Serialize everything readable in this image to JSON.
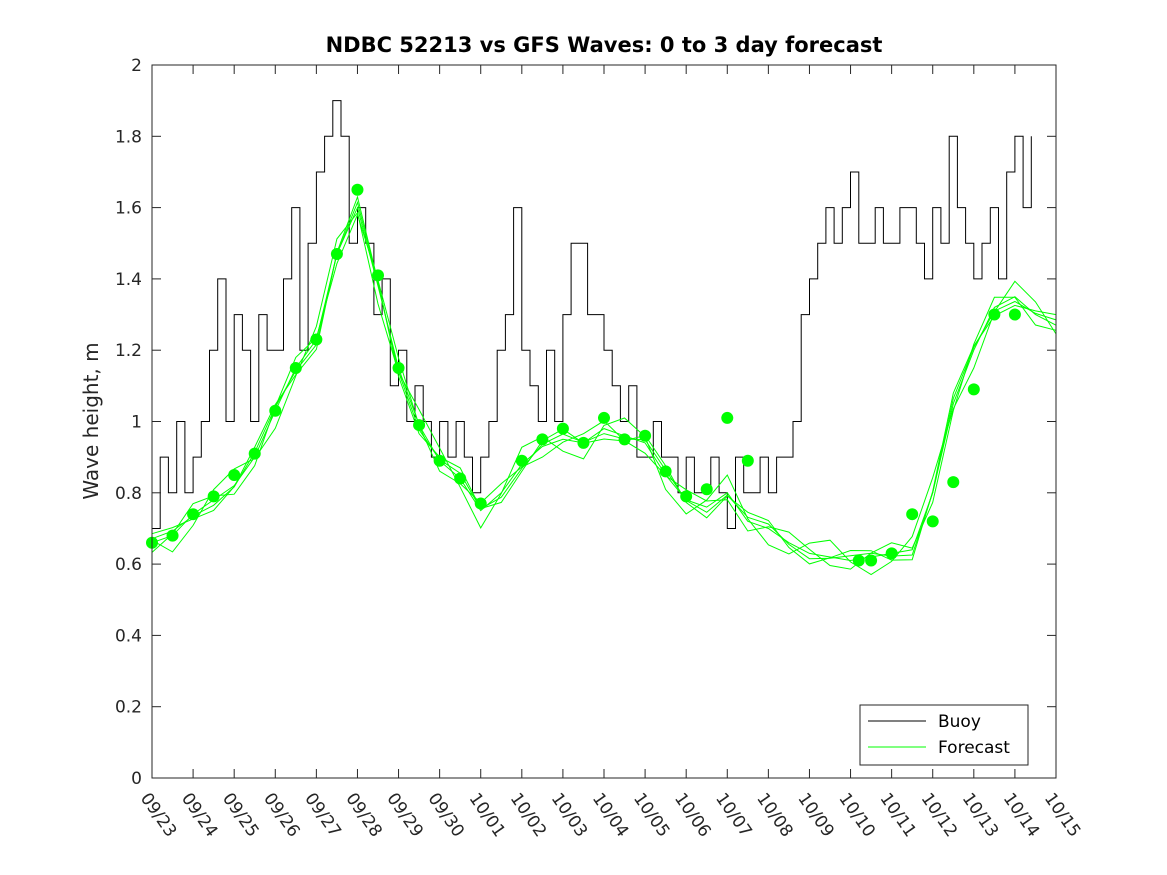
{
  "chart_data": {
    "type": "line",
    "title": "NDBC 52213 vs GFS Waves: 0 to 3 day forecast",
    "xlabel": "",
    "ylabel": "Wave height, m",
    "ylim": [
      0,
      2
    ],
    "xlim": [
      0,
      22
    ],
    "yticks": [
      0,
      0.2,
      0.4,
      0.6,
      0.8,
      1,
      1.2,
      1.4,
      1.6,
      1.8,
      2
    ],
    "ytick_labels": [
      "0",
      "0.2",
      "0.4",
      "0.6",
      "0.8",
      "1",
      "1.2",
      "1.4",
      "1.6",
      "1.8",
      "2"
    ],
    "xticks": [
      0,
      1,
      2,
      3,
      4,
      5,
      6,
      7,
      8,
      9,
      10,
      11,
      12,
      13,
      14,
      15,
      16,
      17,
      18,
      19,
      20,
      21,
      22
    ],
    "xtick_labels": [
      "09/23",
      "09/24",
      "09/25",
      "09/26",
      "09/27",
      "09/28",
      "09/29",
      "09/30",
      "10/01",
      "10/02",
      "10/03",
      "10/04",
      "10/05",
      "10/06",
      "10/07",
      "10/08",
      "10/09",
      "10/10",
      "10/11",
      "10/12",
      "10/13",
      "10/14",
      "10/15"
    ],
    "legend": {
      "placement": "bottom-right",
      "entries": [
        "Buoy",
        "Forecast"
      ]
    },
    "colors": {
      "buoy": "#000000",
      "forecast": "#00ff00",
      "axis": "#262626"
    },
    "series": [
      {
        "name": "Buoy",
        "x": [
          0,
          0.2,
          0.4,
          0.6,
          0.8,
          1.0,
          1.2,
          1.4,
          1.6,
          1.8,
          2.0,
          2.2,
          2.4,
          2.6,
          2.8,
          3.0,
          3.2,
          3.4,
          3.6,
          3.8,
          4.0,
          4.2,
          4.4,
          4.6,
          4.8,
          5.0,
          5.2,
          5.4,
          5.6,
          5.8,
          6.0,
          6.2,
          6.4,
          6.6,
          6.8,
          7.0,
          7.2,
          7.4,
          7.6,
          7.8,
          8.0,
          8.2,
          8.4,
          8.6,
          8.8,
          9.0,
          9.2,
          9.4,
          9.6,
          9.8,
          10.0,
          10.2,
          10.4,
          10.6,
          10.8,
          11.0,
          11.2,
          11.4,
          11.6,
          11.8,
          12.0,
          12.2,
          12.4,
          12.6,
          12.8,
          13.0,
          13.2,
          13.4,
          13.6,
          13.8,
          14.0,
          14.2,
          14.4,
          14.6,
          14.8,
          15.0,
          15.2,
          15.4,
          15.6,
          15.8,
          16.0,
          16.2,
          16.4,
          16.6,
          16.8,
          17.0,
          17.2,
          17.4,
          17.6,
          17.8,
          18.0,
          18.2,
          18.4,
          18.6,
          18.8,
          19.0,
          19.2,
          19.4,
          19.6,
          19.8,
          20.0,
          20.2,
          20.4,
          20.6,
          20.8,
          21.0,
          21.2,
          21.4
        ],
        "y": [
          0.7,
          0.9,
          0.8,
          1.0,
          0.8,
          0.9,
          1.0,
          1.2,
          1.4,
          1.0,
          1.3,
          1.2,
          1.0,
          1.3,
          1.2,
          1.2,
          1.4,
          1.6,
          1.2,
          1.5,
          1.7,
          1.8,
          1.9,
          1.8,
          1.5,
          1.6,
          1.5,
          1.3,
          1.4,
          1.1,
          1.2,
          1.0,
          1.1,
          1.0,
          0.9,
          1.0,
          0.9,
          1.0,
          0.9,
          0.8,
          0.9,
          1.0,
          1.2,
          1.3,
          1.6,
          1.2,
          1.1,
          1.0,
          1.2,
          1.0,
          1.3,
          1.5,
          1.5,
          1.3,
          1.3,
          1.2,
          1.1,
          1.0,
          1.1,
          0.9,
          0.9,
          1.0,
          0.9,
          0.9,
          0.8,
          0.9,
          0.8,
          0.8,
          0.9,
          0.8,
          0.7,
          0.9,
          0.8,
          0.8,
          0.9,
          0.8,
          0.9,
          0.9,
          1.0,
          1.3,
          1.4,
          1.5,
          1.6,
          1.5,
          1.6,
          1.7,
          1.5,
          1.5,
          1.6,
          1.5,
          1.5,
          1.6,
          1.6,
          1.5,
          1.4,
          1.6,
          1.5,
          1.8,
          1.6,
          1.5,
          1.4,
          1.5,
          1.6,
          1.4,
          1.7,
          1.8,
          1.6,
          1.8
        ]
      },
      {
        "name": "Forecast",
        "x": [
          0,
          0.5,
          1.0,
          1.5,
          2.0,
          2.5,
          3.0,
          3.5,
          4.0,
          4.5,
          5.0,
          5.5,
          6.0,
          6.5,
          7.0,
          7.5,
          8.0,
          8.5,
          9.0,
          9.5,
          10.0,
          10.5,
          11.0,
          11.5,
          12.0,
          12.5,
          13.0,
          13.5,
          14.0,
          14.5,
          15.0,
          15.5,
          16.0,
          16.5,
          17.0,
          17.5,
          18.0,
          18.5,
          19.0,
          19.5,
          20.0,
          20.5,
          21.0,
          21.5,
          22.0
        ],
        "y": [
          0.66,
          0.68,
          0.74,
          0.78,
          0.82,
          0.9,
          1.03,
          1.15,
          1.23,
          1.47,
          1.6,
          1.38,
          1.15,
          0.99,
          0.89,
          0.84,
          0.75,
          0.8,
          0.88,
          0.93,
          0.95,
          0.94,
          0.98,
          0.96,
          0.94,
          0.85,
          0.78,
          0.76,
          0.8,
          0.72,
          0.7,
          0.66,
          0.63,
          0.62,
          0.61,
          0.62,
          0.63,
          0.64,
          0.8,
          1.05,
          1.2,
          1.32,
          1.35,
          1.3,
          1.27
        ]
      }
    ],
    "forecast_ensemble_offsets": [
      0,
      0.03,
      -0.03,
      0.05,
      -0.015
    ],
    "forecast_markers": {
      "x": [
        0,
        0.5,
        1,
        1.5,
        2,
        2.5,
        3,
        3.5,
        4,
        4.5,
        5,
        5.5,
        6,
        6.5,
        7,
        7.5,
        8,
        9,
        9.5,
        10,
        10.5,
        11,
        11.5,
        12,
        12.5,
        13,
        13.5,
        14,
        14.5,
        17.2,
        17.5,
        18,
        18.5,
        19,
        19.5,
        20,
        20.5,
        21
      ],
      "y": [
        0.66,
        0.68,
        0.74,
        0.79,
        0.85,
        0.91,
        1.03,
        1.15,
        1.23,
        1.47,
        1.65,
        1.41,
        1.15,
        0.99,
        0.89,
        0.84,
        0.77,
        0.89,
        0.95,
        0.98,
        0.94,
        1.01,
        0.95,
        0.96,
        0.86,
        0.79,
        0.81,
        1.01,
        0.89,
        0.61,
        0.61,
        0.63,
        0.74,
        0.72,
        0.83,
        1.09,
        1.3,
        1.3
      ]
    }
  }
}
